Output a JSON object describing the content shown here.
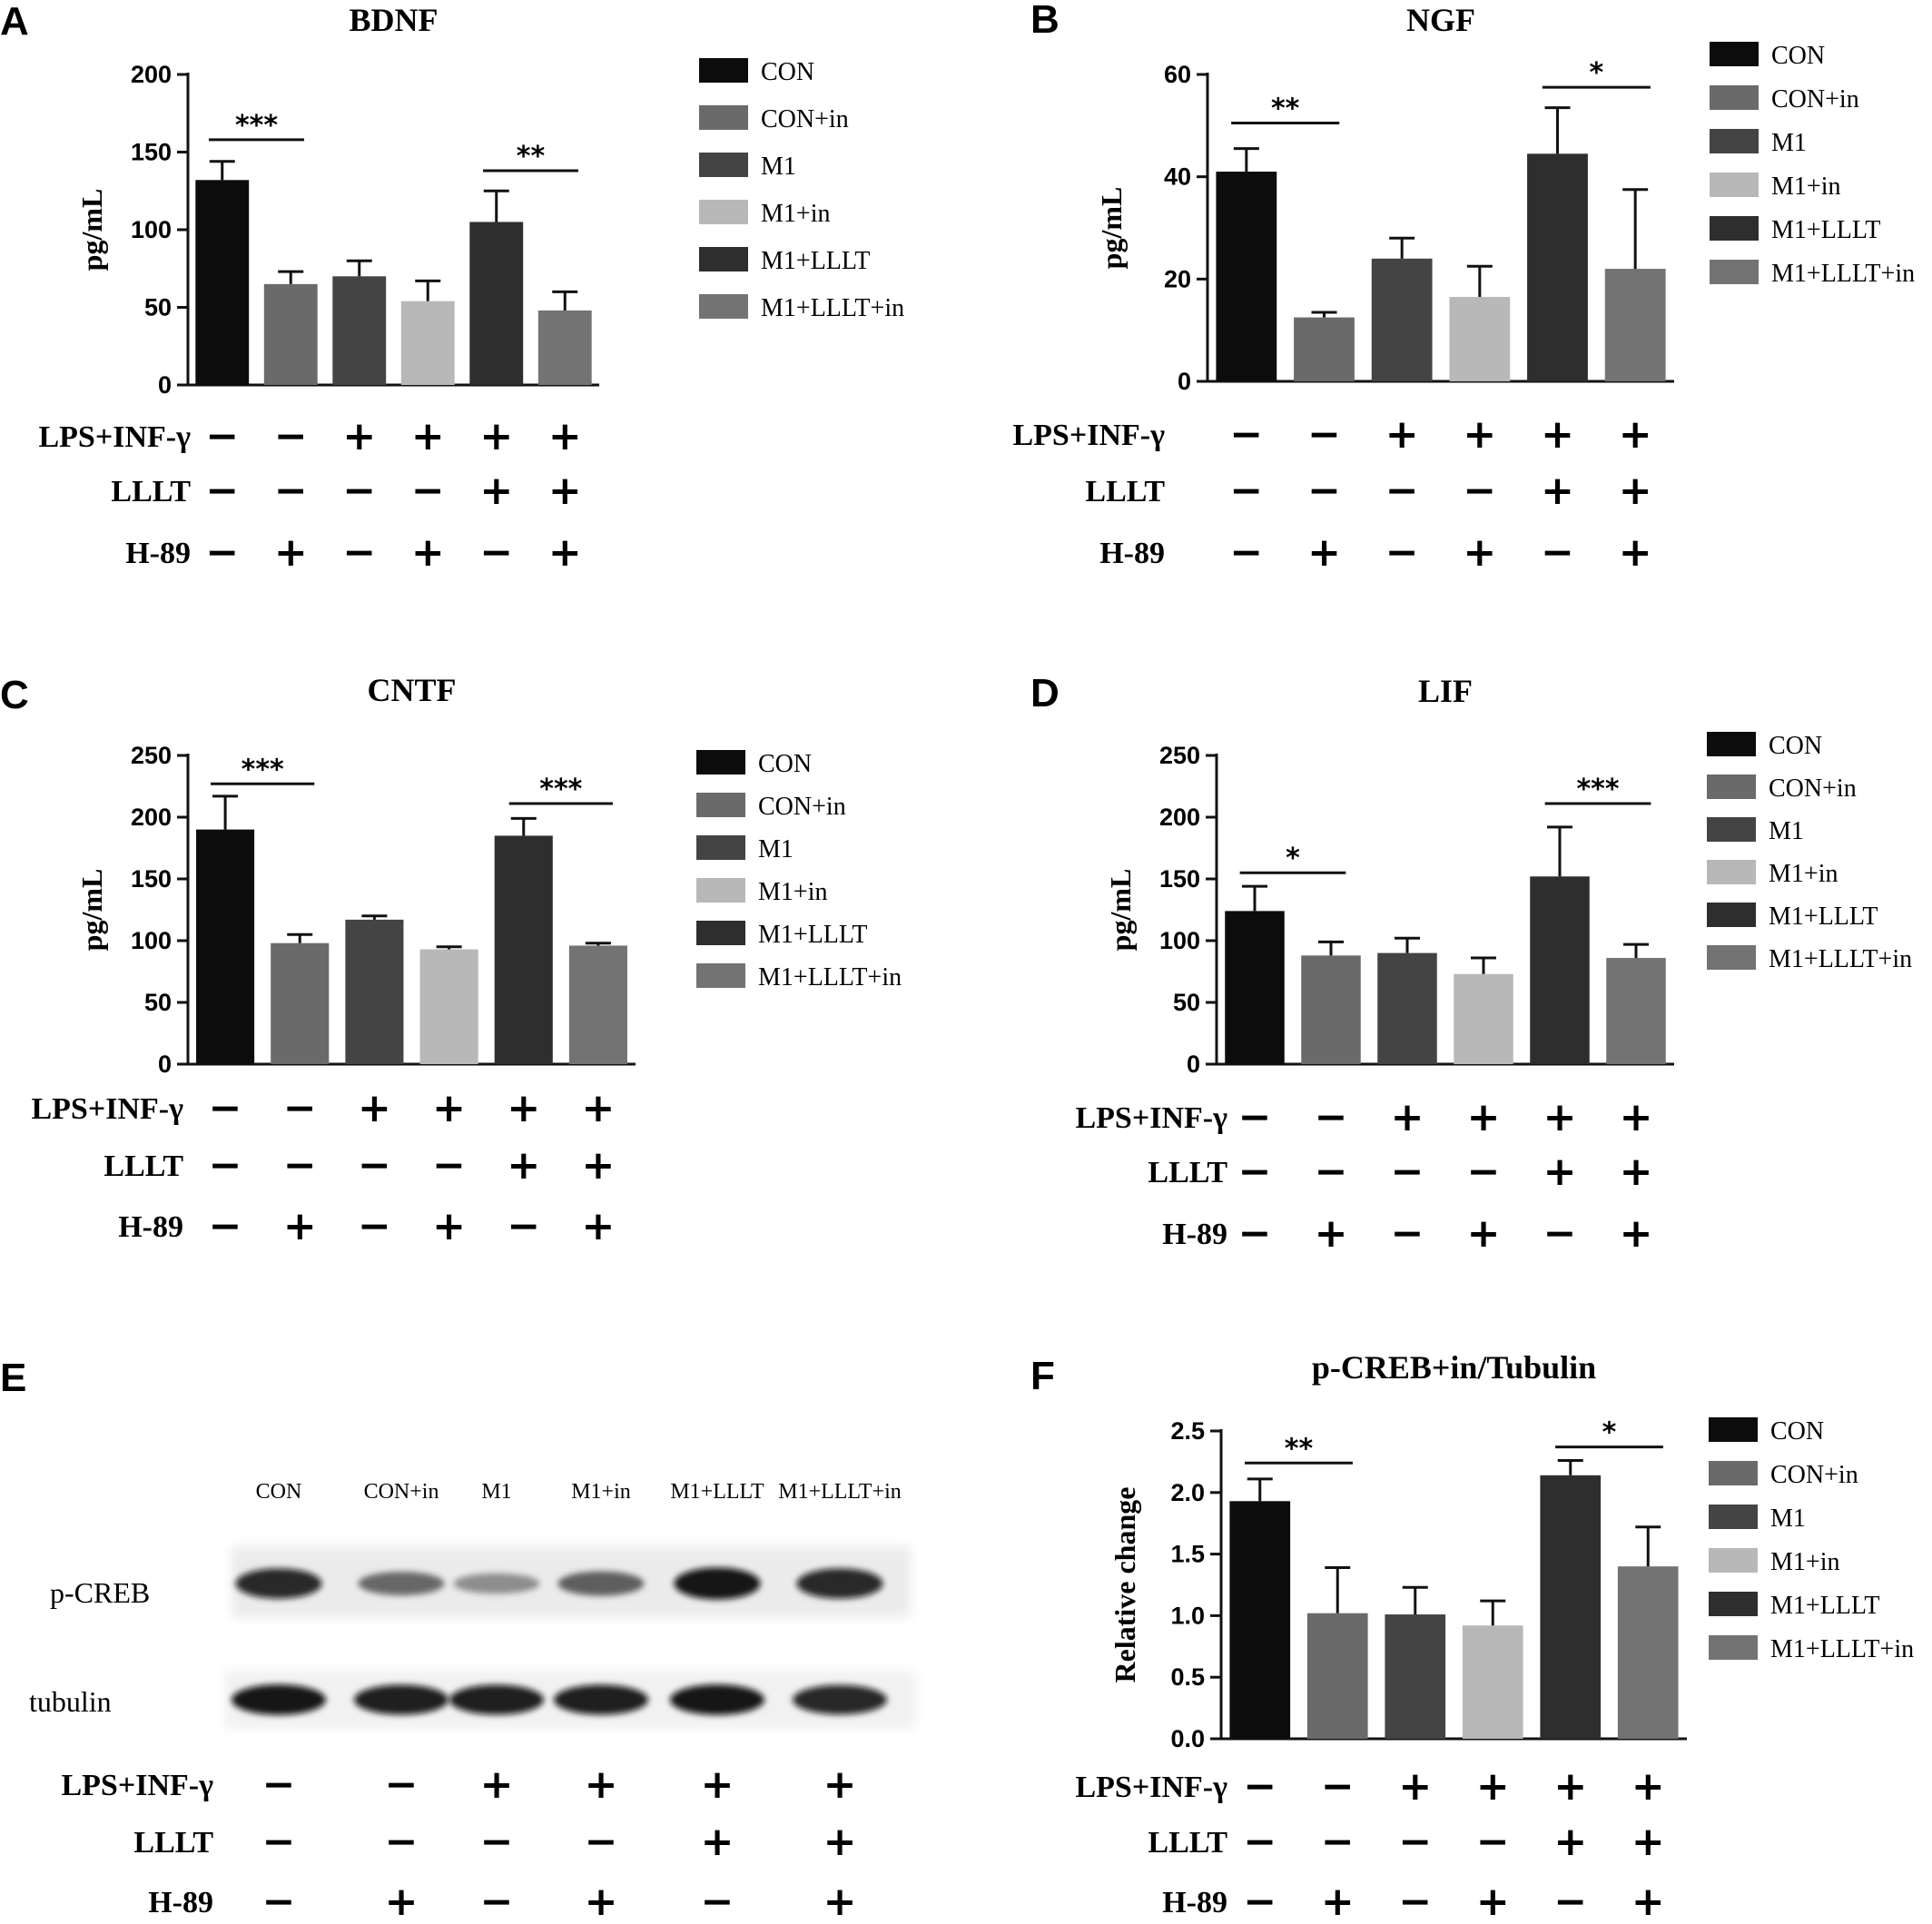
{
  "legend_labels": [
    "CON",
    "CON+in",
    "M1",
    "M1+in",
    "M1+LLLT",
    "M1+LLLT+in"
  ],
  "colors": {
    "CON": "#0c0c0c",
    "CON+in": "#6a6a6a",
    "M1": "#444444",
    "M1+in": "#b8b8b8",
    "M1+LLLT": "#2e2e2e",
    "M1+LLLT+in": "#737373"
  },
  "conditions": {
    "rows": [
      "LPS+INF-γ",
      "LLLT",
      "H-89"
    ],
    "symbols": [
      [
        "−",
        "−",
        "+",
        "+",
        "+",
        "+"
      ],
      [
        "−",
        "−",
        "−",
        "−",
        "+",
        "+"
      ],
      [
        "−",
        "+",
        "−",
        "+",
        "−",
        "+"
      ]
    ]
  },
  "chart_data": [
    {
      "panel": "A",
      "type": "bar",
      "title": "BDNF",
      "ylabel": "pg/mL",
      "xlabel": "",
      "categories": [
        "CON",
        "CON+in",
        "M1",
        "M1+in",
        "M1+LLLT",
        "M1+LLLT+in"
      ],
      "values": [
        132,
        65,
        70,
        54,
        105,
        48
      ],
      "errors": [
        12,
        8,
        10,
        13,
        20,
        12
      ],
      "ylim": [
        0,
        200
      ],
      "yticks": [
        "0",
        "50",
        "100",
        "150",
        "200"
      ],
      "legend": "right",
      "significance": [
        {
          "from": 0,
          "to": 1,
          "label": "***",
          "value": 158
        },
        {
          "from": 4,
          "to": 5,
          "label": "**",
          "value": 138
        }
      ]
    },
    {
      "panel": "B",
      "type": "bar",
      "title": "NGF",
      "ylabel": "pg/mL",
      "xlabel": "",
      "categories": [
        "CON",
        "CON+in",
        "M1",
        "M1+in",
        "M1+LLLT",
        "M1+LLLT+in"
      ],
      "values": [
        41,
        12.5,
        24,
        16.5,
        44.5,
        22
      ],
      "errors": [
        4.5,
        1,
        4,
        6,
        9,
        15.5
      ],
      "ylim": [
        0,
        60
      ],
      "yticks": [
        "0",
        "20",
        "40",
        "60"
      ],
      "legend": "right",
      "significance": [
        {
          "from": 0,
          "to": 1,
          "label": "**",
          "value": 50.5
        },
        {
          "from": 4,
          "to": 5,
          "label": "*",
          "value": 57.5
        }
      ]
    },
    {
      "panel": "C",
      "type": "bar",
      "title": "CNTF",
      "ylabel": "pg/mL",
      "xlabel": "",
      "categories": [
        "CON",
        "CON+in",
        "M1",
        "M1+in",
        "M1+LLLT",
        "M1+LLLT+in"
      ],
      "values": [
        190,
        98,
        117,
        93,
        185,
        96
      ],
      "errors": [
        27,
        7,
        3,
        2,
        14,
        2
      ],
      "ylim": [
        0,
        250
      ],
      "yticks": [
        "0",
        "50",
        "100",
        "150",
        "200",
        "250"
      ],
      "legend": "right",
      "significance": [
        {
          "from": 0,
          "to": 1,
          "label": "***",
          "value": 227
        },
        {
          "from": 4,
          "to": 5,
          "label": "***",
          "value": 211
        }
      ]
    },
    {
      "panel": "D",
      "type": "bar",
      "title": "LIF",
      "ylabel": "pg/mL",
      "xlabel": "",
      "categories": [
        "CON",
        "CON+in",
        "M1",
        "M1+in",
        "M1+LLLT",
        "M1+LLLT+in"
      ],
      "values": [
        124,
        88,
        90,
        73,
        152,
        86
      ],
      "errors": [
        20,
        11,
        12,
        13,
        40,
        11
      ],
      "ylim": [
        0,
        250
      ],
      "yticks": [
        "0",
        "50",
        "100",
        "150",
        "200",
        "250"
      ],
      "legend": "right",
      "significance": [
        {
          "from": 0,
          "to": 1,
          "label": "*",
          "value": 155
        },
        {
          "from": 4,
          "to": 5,
          "label": "***",
          "value": 211
        }
      ]
    },
    {
      "panel": "F",
      "type": "bar",
      "title": "p-CREB+in/Tubulin",
      "ylabel": "Relative change",
      "xlabel": "",
      "categories": [
        "CON",
        "CON+in",
        "M1",
        "M1+in",
        "M1+LLLT",
        "M1+LLLT+in"
      ],
      "values": [
        1.93,
        1.02,
        1.01,
        0.92,
        2.14,
        1.4
      ],
      "errors": [
        0.18,
        0.37,
        0.22,
        0.2,
        0.12,
        0.32
      ],
      "ylim": [
        0,
        2.5
      ],
      "yticks": [
        "0.0",
        "0.5",
        "1.0",
        "1.5",
        "2.0",
        "2.5"
      ],
      "legend": "right",
      "significance": [
        {
          "from": 0,
          "to": 1,
          "label": "**",
          "value": 2.24
        },
        {
          "from": 4,
          "to": 5,
          "label": "*",
          "value": 2.37
        }
      ]
    }
  ],
  "blot": {
    "panel": "E",
    "lanes": [
      "CON",
      "CON+in",
      "M1",
      "M1+in",
      "M1+LLLT",
      "M1+LLLT+in"
    ],
    "rows": [
      "p-CREB",
      "tubulin"
    ],
    "pcreb_intensity": [
      0.85,
      0.45,
      0.25,
      0.5,
      0.95,
      0.85
    ],
    "tubulin_intensity": [
      0.95,
      0.9,
      0.9,
      0.9,
      0.95,
      0.85
    ]
  }
}
